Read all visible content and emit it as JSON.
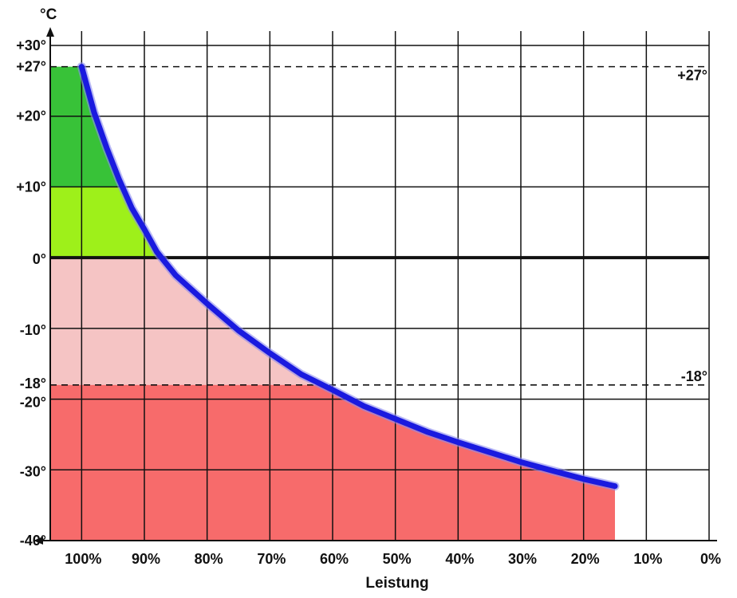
{
  "chart_data": {
    "type": "area",
    "title": "",
    "xlabel": "Leistung",
    "ylabel": "°C",
    "xlim": [
      105,
      0
    ],
    "ylim": [
      -40,
      30
    ],
    "grid": true,
    "x_ticks": [
      {
        "value": 100,
        "label": "100%"
      },
      {
        "value": 90,
        "label": "90%"
      },
      {
        "value": 80,
        "label": "80%"
      },
      {
        "value": 70,
        "label": "70%"
      },
      {
        "value": 60,
        "label": "60%"
      },
      {
        "value": 50,
        "label": "50%"
      },
      {
        "value": 40,
        "label": "40%"
      },
      {
        "value": 30,
        "label": "30%"
      },
      {
        "value": 20,
        "label": "20%"
      },
      {
        "value": 10,
        "label": "10%"
      },
      {
        "value": 0,
        "label": "0%"
      }
    ],
    "y_ticks": [
      {
        "value": 30,
        "label": "+30°"
      },
      {
        "value": 27,
        "label": "+27°"
      },
      {
        "value": 20,
        "label": "+20°"
      },
      {
        "value": 10,
        "label": "+10°"
      },
      {
        "value": 0,
        "label": "0°"
      },
      {
        "value": -10,
        "label": "-10°"
      },
      {
        "value": -18,
        "label": "-18°"
      },
      {
        "value": -20,
        "label": "-20°"
      },
      {
        "value": -30,
        "label": "-30°"
      },
      {
        "value": -40,
        "label": "-40°"
      }
    ],
    "reference_lines": [
      {
        "y": 27,
        "label": "+27°"
      },
      {
        "y": -18,
        "label": "-18°"
      }
    ],
    "series": [
      {
        "color": "#1a1adf",
        "x": [
          100,
          98,
          96,
          94,
          92,
          90,
          88,
          85,
          80,
          75,
          70,
          65,
          60,
          55,
          50,
          45,
          40,
          35,
          30,
          25,
          20,
          15
        ],
        "y": [
          27,
          20.5,
          15.5,
          11,
          7,
          4,
          0.8,
          -2.5,
          -6.5,
          -10.3,
          -13.5,
          -16.5,
          -18.7,
          -21,
          -22.8,
          -24.6,
          -26.1,
          -27.5,
          -28.9,
          -30.1,
          -31.3,
          -32.3
        ]
      }
    ],
    "regions": [
      {
        "name": "zone-dark-green",
        "color": "#38c238",
        "y_range": [
          10,
          27
        ]
      },
      {
        "name": "zone-light-green",
        "color": "#9ef01a",
        "y_range": [
          0,
          10
        ]
      },
      {
        "name": "zone-light-red",
        "color": "#f5c4c4",
        "y_range": [
          -18,
          0
        ]
      },
      {
        "name": "zone-red",
        "color": "#f76b6b",
        "y_range": [
          -40,
          -18
        ]
      }
    ]
  }
}
